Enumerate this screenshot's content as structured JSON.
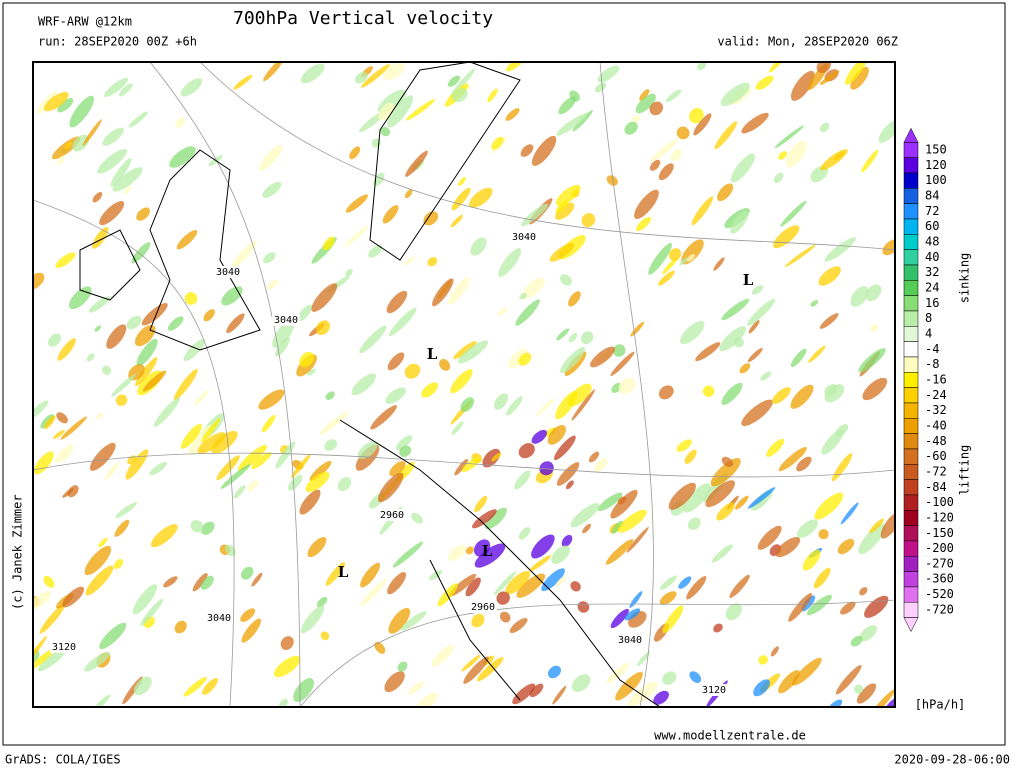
{
  "header": {
    "model": "WRF-ARW @12km",
    "title": "700hPa Vertical velocity",
    "run": "run: 28SEP2020 00Z +6h",
    "valid": "valid: Mon, 28SEP2020 06Z"
  },
  "map": {
    "contour_labels": [
      3040,
      3040,
      3040,
      2960,
      2960,
      3040,
      3040,
      3120,
      3120
    ],
    "lows": [
      "L",
      "L",
      "L",
      "L"
    ],
    "copyright": "(c) Janek Zimmer"
  },
  "legend": {
    "levels": [
      150,
      120,
      100,
      84,
      72,
      60,
      48,
      40,
      32,
      24,
      16,
      8,
      4,
      -4,
      -8,
      -16,
      -24,
      -32,
      -40,
      -48,
      -60,
      -72,
      -84,
      -100,
      -120,
      -150,
      -200,
      -270,
      -360,
      -520,
      -720
    ],
    "colors": [
      "#9b30ff",
      "#5a00e0",
      "#0000cd",
      "#1560e0",
      "#1e90ff",
      "#00b4f0",
      "#00cccc",
      "#30d0a0",
      "#33c06a",
      "#55cc55",
      "#88dd77",
      "#b8eea8",
      "#e0f8d8",
      "#ffffff",
      "#fffcc0",
      "#ffee00",
      "#ffd000",
      "#f5b400",
      "#eea000",
      "#e08a10",
      "#d47020",
      "#c85a20",
      "#c04020",
      "#b02020",
      "#a00020",
      "#b0105a",
      "#c0108a",
      "#a020c0",
      "#c040e0",
      "#e070f0",
      "#ffd0ff"
    ],
    "upper": "sinking",
    "lower": "lifting",
    "unit": "[hPa/h]"
  },
  "footer": {
    "website": "www.modellzentrale.de",
    "software": "GrADS: COLA/IGES",
    "timestamp": "2020-09-28-06:00"
  }
}
